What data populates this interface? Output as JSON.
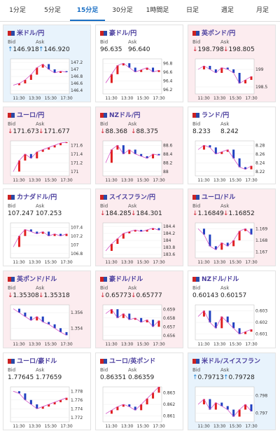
{
  "tabs": [
    "1分足",
    "5分足",
    "15分足",
    "30分足",
    "1時間足",
    "日足",
    "週足",
    "月足"
  ],
  "active_tab": 2,
  "bid_label": "Bid",
  "ask_label": "Ask",
  "time_ticks": [
    "11:30",
    "13:30",
    "15:30",
    "17:30"
  ],
  "cards": [
    {
      "title": "米ドル/円",
      "trend": "up",
      "bid": "146.918",
      "ask": "146.920",
      "chart": {
        "ylim": [
          146.3,
          147.3
        ],
        "yticks": [
          147.2,
          147,
          146.8,
          146.6,
          146.4
        ],
        "values": [
          146.55,
          146.6,
          146.7,
          146.85,
          147.05,
          147.15,
          147.0,
          146.9,
          146.95,
          146.92
        ]
      }
    },
    {
      "title": "豪ドル/円",
      "trend": "flat",
      "bid": "96.635",
      "ask": "96.640",
      "chart": {
        "ylim": [
          96.1,
          96.9
        ],
        "yticks": [
          96.8,
          96.6,
          96.4,
          96.2
        ],
        "values": [
          96.35,
          96.55,
          96.75,
          96.8,
          96.7,
          96.6,
          96.65,
          96.7,
          96.6,
          96.64
        ]
      }
    },
    {
      "title": "英ポンド/円",
      "trend": "down",
      "bid": "198.798",
      "ask": "198.805",
      "chart": {
        "ylim": [
          198.3,
          199.3
        ],
        "yticks": [
          199,
          198.5
        ],
        "values": [
          199.0,
          199.1,
          199.0,
          198.9,
          199.05,
          199.0,
          198.9,
          198.6,
          198.7,
          198.8
        ]
      }
    },
    {
      "title": "ユーロ/円",
      "trend": "down",
      "bid": "171.673",
      "ask": "171.677",
      "chart": {
        "ylim": [
          170.9,
          171.7
        ],
        "yticks": [
          171.6,
          171.4,
          171.2,
          171
        ],
        "values": [
          171.0,
          171.25,
          171.4,
          171.3,
          171.45,
          171.5,
          171.55,
          171.6,
          171.65,
          171.67
        ]
      }
    },
    {
      "title": "NZドル/円",
      "trend": "down",
      "bid": "88.368",
      "ask": "88.375",
      "chart": {
        "ylim": [
          87.9,
          88.7
        ],
        "yticks": [
          88.6,
          88.4,
          88.2,
          88
        ],
        "values": [
          88.2,
          88.5,
          88.6,
          88.4,
          88.5,
          88.4,
          88.35,
          88.3,
          88.4,
          88.37
        ]
      }
    },
    {
      "title": "ランド/円",
      "trend": "flat",
      "bid": "8.233",
      "ask": "8.242",
      "chart": {
        "ylim": [
          8.21,
          8.29
        ],
        "yticks": [
          8.28,
          8.26,
          8.24,
          8.22
        ],
        "values": [
          8.27,
          8.28,
          8.275,
          8.26,
          8.265,
          8.27,
          8.25,
          8.23,
          8.225,
          8.233
        ]
      }
    },
    {
      "title": "カナダドル/円",
      "trend": "flat",
      "bid": "107.247",
      "ask": "107.253",
      "chart": {
        "ylim": [
          106.7,
          107.5
        ],
        "yticks": [
          107.4,
          107.2,
          107,
          106.8
        ],
        "values": [
          106.95,
          107.2,
          107.35,
          107.3,
          107.25,
          107.3,
          107.2,
          107.25,
          107.2,
          107.25
        ]
      }
    },
    {
      "title": "スイスフラン/円",
      "trend": "down",
      "bid": "184.285",
      "ask": "184.301",
      "chart": {
        "ylim": [
          183.5,
          184.5
        ],
        "yticks": [
          184.4,
          184.2,
          184,
          183.8,
          183.6
        ],
        "values": [
          183.7,
          183.9,
          184.05,
          184.2,
          184.25,
          184.3,
          184.25,
          184.3,
          184.35,
          184.29
        ]
      }
    },
    {
      "title": "ユーロ/ドル",
      "trend": "down",
      "bid": "1.16849",
      "ask": "1.16852",
      "chart": {
        "ylim": [
          1.1665,
          1.1695
        ],
        "yticks": [
          1.169,
          1.168,
          1.167
        ],
        "values": [
          1.169,
          1.1685,
          1.1675,
          1.1672,
          1.1678,
          1.1675,
          1.168,
          1.1688,
          1.169,
          1.1685
        ]
      }
    },
    {
      "title": "英ポンド/ドル",
      "trend": "down",
      "bid": "1.35308",
      "ask": "1.35318",
      "chart": {
        "ylim": [
          1.3525,
          1.357
        ],
        "yticks": [
          1.356,
          1.354
        ],
        "values": [
          1.3565,
          1.356,
          1.3555,
          1.355,
          1.3555,
          1.3548,
          1.3545,
          1.354,
          1.3535,
          1.3531
        ]
      }
    },
    {
      "title": "豪ドル/ドル",
      "trend": "down",
      "bid": "0.65773",
      "ask": "0.65777",
      "chart": {
        "ylim": [
          0.6555,
          0.6595
        ],
        "yticks": [
          0.659,
          0.658,
          0.657,
          0.656
        ],
        "values": [
          0.6585,
          0.659,
          0.658,
          0.6585,
          0.6578,
          0.658,
          0.6575,
          0.6578,
          0.657,
          0.6577
        ]
      }
    },
    {
      "title": "NZドル/ドル",
      "trend": "flat",
      "bid": "0.60143",
      "ask": "0.60157",
      "chart": {
        "ylim": [
          0.6005,
          0.6035
        ],
        "yticks": [
          0.603,
          0.602,
          0.601
        ],
        "values": [
          0.6025,
          0.603,
          0.602,
          0.6015,
          0.6025,
          0.602,
          0.6015,
          0.601,
          0.6012,
          0.6014
        ]
      }
    },
    {
      "title": "ユーロ/豪ドル",
      "trend": "flat",
      "bid": "1.77645",
      "ask": "1.77659",
      "chart": {
        "ylim": [
          1.771,
          1.779
        ],
        "yticks": [
          1.778,
          1.776,
          1.774,
          1.772
        ],
        "values": [
          1.778,
          1.7775,
          1.776,
          1.775,
          1.774,
          1.7745,
          1.775,
          1.7755,
          1.776,
          1.7765
        ]
      }
    },
    {
      "title": "ユーロ/英ポンド",
      "trend": "flat",
      "bid": "0.86351",
      "ask": "0.86359",
      "chart": {
        "ylim": [
          0.8605,
          0.8635
        ],
        "yticks": [
          0.863,
          0.862,
          0.861
        ],
        "values": [
          0.8612,
          0.8615,
          0.8618,
          0.862,
          0.8618,
          0.8615,
          0.862,
          0.8625,
          0.863,
          0.8635
        ]
      }
    },
    {
      "title": "米ドル/スイスフラン",
      "trend": "up",
      "bid": "0.79713",
      "ask": "0.79728",
      "chart": {
        "ylim": [
          0.7965,
          0.7985
        ],
        "yticks": [
          0.798,
          0.797
        ],
        "values": [
          0.7975,
          0.7978,
          0.7972,
          0.7976,
          0.7974,
          0.7972,
          0.7968,
          0.7972,
          0.7975,
          0.7971
        ]
      }
    }
  ]
}
